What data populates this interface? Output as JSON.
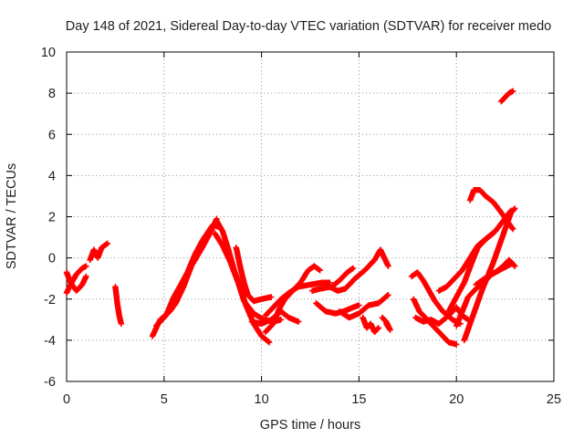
{
  "chart_data": {
    "type": "scatter",
    "title": "Day 148 of 2021, Sidereal Day-to-day VTEC variation (SDTVAR) for receiver medo",
    "xlabel": "GPS time / hours",
    "ylabel": "SDTVAR / TECUs",
    "xlim": [
      0,
      25
    ],
    "ylim": [
      -6,
      10
    ],
    "xticks": [
      0,
      5,
      10,
      15,
      20,
      25
    ],
    "yticks": [
      -6,
      -4,
      -2,
      0,
      2,
      4,
      6,
      8,
      10
    ],
    "grid": true,
    "marker": "+",
    "series_color": "#ff0000",
    "tracks": [
      {
        "name": "track-1",
        "points": [
          [
            0.0,
            -1.7
          ],
          [
            0.2,
            -1.3
          ],
          [
            0.5,
            -0.8
          ],
          [
            0.8,
            -0.5
          ],
          [
            1.0,
            -0.4
          ]
        ]
      },
      {
        "name": "track-2",
        "points": [
          [
            0.0,
            -0.7
          ],
          [
            0.2,
            -1.2
          ],
          [
            0.5,
            -1.6
          ],
          [
            0.8,
            -1.3
          ],
          [
            1.0,
            -0.9
          ]
        ]
      },
      {
        "name": "track-3",
        "points": [
          [
            1.2,
            -0.1
          ],
          [
            1.4,
            0.4
          ],
          [
            1.6,
            0.0
          ],
          [
            1.8,
            0.5
          ],
          [
            2.1,
            0.7
          ]
        ]
      },
      {
        "name": "track-4",
        "points": [
          [
            2.5,
            -1.4
          ],
          [
            2.6,
            -2.2
          ],
          [
            2.7,
            -2.8
          ],
          [
            2.8,
            -3.2
          ]
        ]
      },
      {
        "name": "track-5",
        "points": [
          [
            4.4,
            -3.8
          ],
          [
            4.8,
            -3.0
          ],
          [
            5.3,
            -2.6
          ],
          [
            5.6,
            -2.2
          ],
          [
            6.0,
            -1.4
          ],
          [
            6.4,
            -0.4
          ],
          [
            6.9,
            0.4
          ],
          [
            7.3,
            1.1
          ],
          [
            7.7,
            1.9
          ]
        ]
      },
      {
        "name": "track-6",
        "points": [
          [
            4.6,
            -3.3
          ],
          [
            5.1,
            -2.8
          ],
          [
            5.5,
            -1.9
          ],
          [
            5.8,
            -1.4
          ],
          [
            6.2,
            -0.7
          ],
          [
            6.6,
            0.2
          ],
          [
            7.0,
            0.9
          ],
          [
            7.5,
            1.6
          ],
          [
            7.8,
            1.5
          ]
        ]
      },
      {
        "name": "track-7",
        "points": [
          [
            7.7,
            1.8
          ],
          [
            8.0,
            1.3
          ],
          [
            8.3,
            0.4
          ],
          [
            8.6,
            -0.6
          ],
          [
            8.9,
            -1.4
          ],
          [
            9.2,
            -2.3
          ],
          [
            9.6,
            -3.2
          ],
          [
            10.0,
            -3.8
          ],
          [
            10.4,
            -4.1
          ]
        ]
      },
      {
        "name": "track-8",
        "points": [
          [
            7.6,
            1.2
          ],
          [
            8.0,
            0.6
          ],
          [
            8.4,
            -0.2
          ],
          [
            8.8,
            -1.2
          ],
          [
            9.1,
            -2.1
          ],
          [
            9.6,
            -2.7
          ],
          [
            10.1,
            -3.0
          ],
          [
            10.6,
            -3.1
          ],
          [
            11.0,
            -3.0
          ]
        ]
      },
      {
        "name": "track-9",
        "points": [
          [
            8.7,
            0.5
          ],
          [
            8.9,
            -0.4
          ],
          [
            9.1,
            -1.2
          ],
          [
            9.3,
            -1.8
          ],
          [
            9.6,
            -2.1
          ],
          [
            10.0,
            -2.0
          ],
          [
            10.5,
            -1.9
          ]
        ]
      },
      {
        "name": "track-10",
        "points": [
          [
            9.5,
            -3.1
          ],
          [
            10.0,
            -3.2
          ],
          [
            10.5,
            -3.0
          ],
          [
            11.0,
            -2.6
          ],
          [
            11.4,
            -2.9
          ],
          [
            11.9,
            -3.1
          ]
        ]
      },
      {
        "name": "track-11",
        "points": [
          [
            10.2,
            -2.8
          ],
          [
            10.6,
            -2.4
          ],
          [
            11.0,
            -2.0
          ],
          [
            11.4,
            -1.7
          ],
          [
            11.9,
            -1.4
          ],
          [
            12.5,
            -1.3
          ],
          [
            13.1,
            -1.2
          ],
          [
            13.5,
            -1.2
          ]
        ]
      },
      {
        "name": "track-12",
        "points": [
          [
            10.2,
            -3.6
          ],
          [
            10.6,
            -3.2
          ],
          [
            10.9,
            -2.5
          ],
          [
            11.2,
            -2.0
          ],
          [
            11.6,
            -1.6
          ],
          [
            12.0,
            -1.2
          ],
          [
            12.4,
            -0.6
          ],
          [
            12.7,
            -0.4
          ],
          [
            13.0,
            -0.6
          ]
        ]
      },
      {
        "name": "track-13",
        "points": [
          [
            12.8,
            -2.2
          ],
          [
            13.3,
            -2.6
          ],
          [
            13.8,
            -2.7
          ],
          [
            14.2,
            -2.6
          ],
          [
            14.7,
            -2.4
          ],
          [
            15.0,
            -2.3
          ]
        ]
      },
      {
        "name": "track-14",
        "points": [
          [
            12.6,
            -1.6
          ],
          [
            13.0,
            -1.5
          ],
          [
            13.6,
            -1.4
          ],
          [
            14.0,
            -1.1
          ],
          [
            14.4,
            -0.7
          ],
          [
            14.7,
            -0.5
          ]
        ]
      },
      {
        "name": "track-15",
        "points": [
          [
            13.5,
            -1.4
          ],
          [
            13.9,
            -1.6
          ],
          [
            14.3,
            -1.5
          ],
          [
            14.8,
            -1.0
          ],
          [
            15.3,
            -0.6
          ],
          [
            15.8,
            -0.1
          ],
          [
            16.1,
            0.4
          ],
          [
            16.5,
            -0.4
          ]
        ]
      },
      {
        "name": "track-16",
        "points": [
          [
            14.0,
            -2.6
          ],
          [
            14.5,
            -2.9
          ],
          [
            15.0,
            -2.7
          ],
          [
            15.5,
            -2.3
          ],
          [
            16.0,
            -2.2
          ],
          [
            16.5,
            -1.8
          ]
        ]
      },
      {
        "name": "track-17",
        "points": [
          [
            15.2,
            -2.9
          ],
          [
            15.4,
            -3.4
          ],
          [
            15.6,
            -3.2
          ],
          [
            15.8,
            -3.6
          ],
          [
            16.0,
            -3.4
          ]
        ]
      },
      {
        "name": "track-18",
        "points": [
          [
            16.2,
            -2.9
          ],
          [
            16.4,
            -3.1
          ],
          [
            16.6,
            -3.5
          ],
          [
            16.4,
            -3.2
          ]
        ]
      },
      {
        "name": "track-19",
        "points": [
          [
            17.7,
            -0.9
          ],
          [
            18.0,
            -0.7
          ],
          [
            18.3,
            -1.1
          ],
          [
            18.6,
            -1.6
          ],
          [
            18.9,
            -2.1
          ],
          [
            19.3,
            -2.6
          ],
          [
            19.8,
            -3.0
          ],
          [
            20.2,
            -3.2
          ]
        ]
      },
      {
        "name": "track-20",
        "points": [
          [
            17.8,
            -2.0
          ],
          [
            18.1,
            -2.6
          ],
          [
            18.4,
            -2.9
          ],
          [
            18.8,
            -3.3
          ],
          [
            19.2,
            -3.7
          ],
          [
            19.6,
            -4.1
          ],
          [
            20.0,
            -4.2
          ]
        ]
      },
      {
        "name": "track-21",
        "points": [
          [
            17.9,
            -2.9
          ],
          [
            18.3,
            -3.1
          ],
          [
            18.7,
            -3.0
          ],
          [
            19.1,
            -3.2
          ],
          [
            19.6,
            -2.8
          ],
          [
            20.0,
            -2.4
          ],
          [
            20.3,
            -2.8
          ],
          [
            20.6,
            -3.0
          ]
        ]
      },
      {
        "name": "track-22",
        "points": [
          [
            19.1,
            -1.6
          ],
          [
            19.5,
            -1.4
          ],
          [
            19.9,
            -1.0
          ],
          [
            20.3,
            -0.6
          ],
          [
            20.7,
            0.0
          ],
          [
            21.1,
            0.6
          ],
          [
            21.6,
            1.0
          ],
          [
            22.0,
            1.3
          ],
          [
            22.4,
            1.8
          ],
          [
            22.8,
            2.3
          ]
        ]
      },
      {
        "name": "track-23",
        "points": [
          [
            19.6,
            -2.6
          ],
          [
            20.0,
            -1.9
          ],
          [
            20.4,
            -1.2
          ],
          [
            20.8,
            -0.2
          ],
          [
            21.1,
            0.5
          ],
          [
            21.5,
            0.9
          ],
          [
            21.9,
            1.2
          ]
        ]
      },
      {
        "name": "track-24",
        "points": [
          [
            20.0,
            -3.3
          ],
          [
            20.3,
            -2.6
          ],
          [
            20.6,
            -1.9
          ],
          [
            21.0,
            -1.5
          ],
          [
            21.4,
            -1.2
          ],
          [
            21.8,
            -0.8
          ],
          [
            22.2,
            -0.6
          ],
          [
            22.8,
            -0.3
          ]
        ]
      },
      {
        "name": "track-25",
        "points": [
          [
            20.4,
            -4.0
          ],
          [
            20.7,
            -3.2
          ],
          [
            21.0,
            -2.4
          ],
          [
            21.3,
            -1.6
          ],
          [
            21.6,
            -0.9
          ],
          [
            21.9,
            -0.2
          ],
          [
            22.2,
            0.6
          ],
          [
            22.5,
            1.4
          ],
          [
            22.8,
            2.2
          ],
          [
            23.0,
            2.4
          ]
        ]
      },
      {
        "name": "track-26",
        "points": [
          [
            20.7,
            2.8
          ],
          [
            20.9,
            3.3
          ],
          [
            21.2,
            3.3
          ],
          [
            21.5,
            3.0
          ],
          [
            21.9,
            2.7
          ],
          [
            22.3,
            2.2
          ],
          [
            22.6,
            1.8
          ],
          [
            22.9,
            1.4
          ]
        ]
      },
      {
        "name": "track-27",
        "points": [
          [
            21.0,
            -1.3
          ],
          [
            21.3,
            -1.1
          ],
          [
            21.6,
            -0.9
          ],
          [
            22.0,
            -0.7
          ],
          [
            22.4,
            -0.4
          ],
          [
            22.7,
            -0.1
          ],
          [
            23.0,
            -0.4
          ]
        ]
      },
      {
        "name": "track-28",
        "points": [
          [
            22.3,
            7.6
          ],
          [
            22.5,
            7.8
          ],
          [
            22.7,
            8.0
          ],
          [
            22.9,
            8.1
          ]
        ]
      }
    ]
  }
}
